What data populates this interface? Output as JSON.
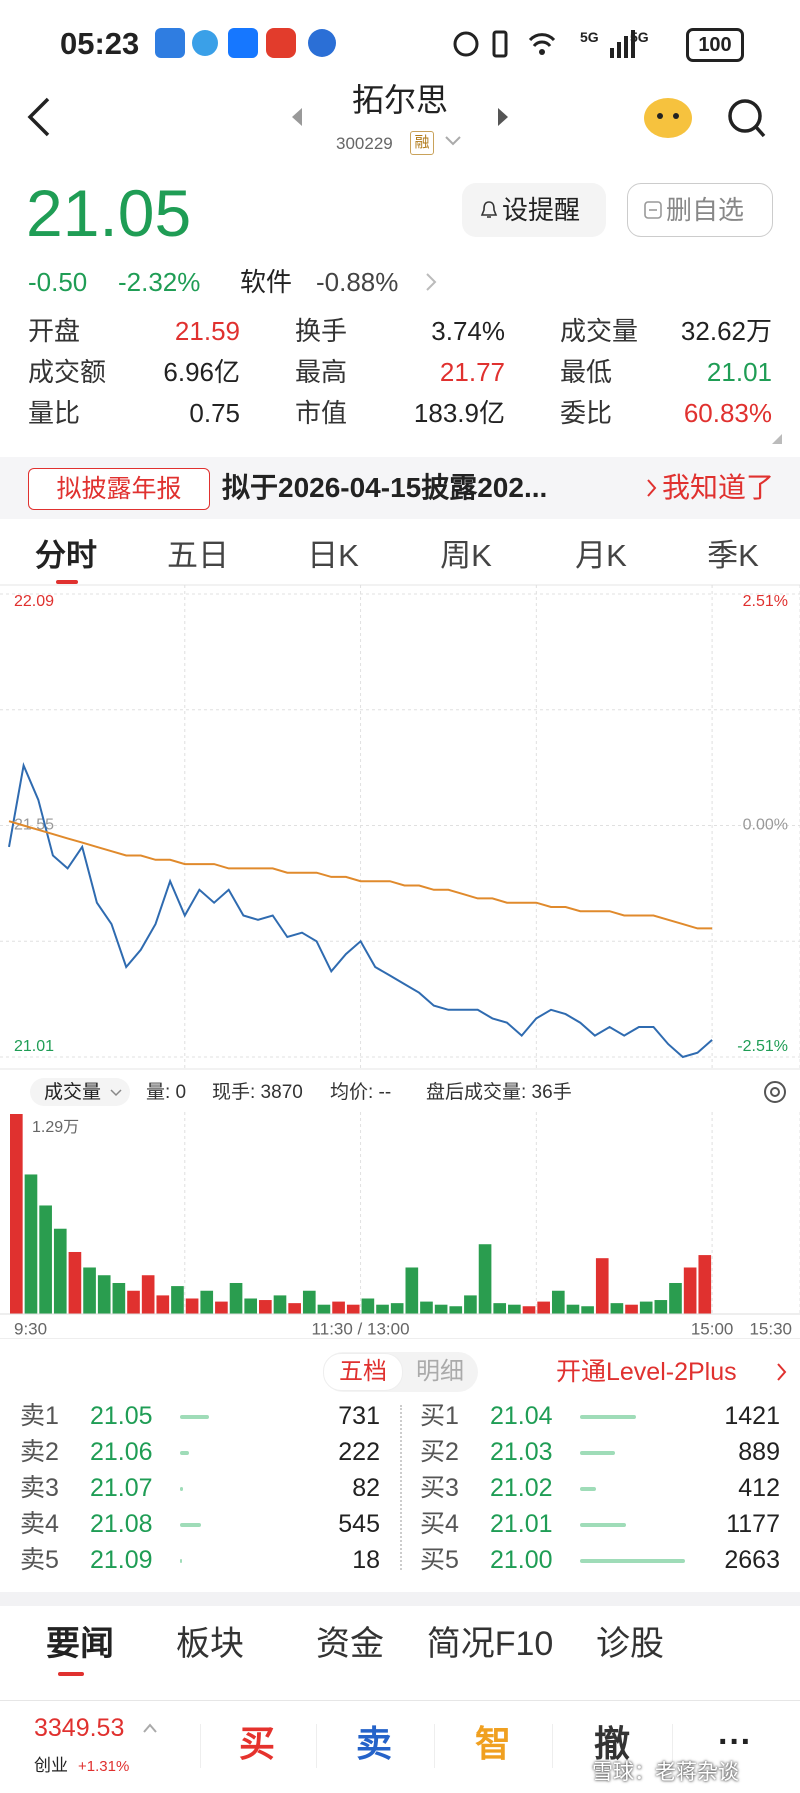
{
  "status_bar": {
    "time": "05:23",
    "network_1": "5G",
    "network_2": "5G",
    "battery": "100"
  },
  "header": {
    "title": "拓尔思",
    "code": "300229",
    "tag": "融"
  },
  "quote": {
    "price": "21.05",
    "change": "-0.50",
    "change_pct": "-2.32%",
    "sector": "软件",
    "sector_change": "-0.88%",
    "alert_button": "设提醒",
    "remove_button": "删自选"
  },
  "stats": [
    {
      "label": "开盘",
      "value": "21.59",
      "color": "#e0312f"
    },
    {
      "label": "换手",
      "value": "3.74%",
      "color": "#222222"
    },
    {
      "label": "成交量",
      "value": "32.62万",
      "color": "#222222"
    },
    {
      "label": "成交额",
      "value": "6.96亿",
      "color": "#222222"
    },
    {
      "label": "最高",
      "value": "21.77",
      "color": "#e0312f"
    },
    {
      "label": "最低",
      "value": "21.01",
      "color": "#1f9d55"
    },
    {
      "label": "量比",
      "value": "0.75",
      "color": "#222222"
    },
    {
      "label": "市值",
      "value": "183.9亿",
      "color": "#222222"
    },
    {
      "label": "委比",
      "value": "60.83%",
      "color": "#e0312f"
    }
  ],
  "notice": {
    "tag": "拟披露年报",
    "text": "拟于2026-04-15披露202...",
    "action": "我知道了"
  },
  "chart_tabs": [
    "分时",
    "五日",
    "日K",
    "周K",
    "月K",
    "季K"
  ],
  "chart_data": [
    {
      "type": "line",
      "x": [
        0,
        5,
        10,
        15,
        20,
        25,
        30,
        35,
        40,
        45,
        50,
        55,
        60,
        65,
        70,
        75,
        80,
        85,
        90,
        95,
        100,
        105,
        110,
        115,
        120,
        125,
        130,
        135,
        140,
        145,
        150,
        155,
        160,
        165,
        170,
        175,
        180,
        185,
        190,
        195,
        200,
        205,
        210,
        215,
        220,
        225,
        230,
        235,
        240
      ],
      "series": [
        {
          "color": "#2f6bb0",
          "values": [
            21.5,
            21.69,
            21.61,
            21.48,
            21.45,
            21.5,
            21.37,
            21.32,
            21.22,
            21.26,
            21.32,
            21.42,
            21.34,
            21.4,
            21.37,
            21.4,
            21.34,
            21.33,
            21.34,
            21.29,
            21.3,
            21.28,
            21.21,
            21.25,
            21.28,
            21.22,
            21.2,
            21.18,
            21.16,
            21.13,
            21.12,
            21.12,
            21.12,
            21.1,
            21.09,
            21.06,
            21.1,
            21.12,
            21.11,
            21.09,
            21.06,
            21.08,
            21.06,
            21.08,
            21.08,
            21.04,
            21.01,
            21.02,
            21.05
          ]
        },
        {
          "color": "#e08a2c",
          "values": [
            21.56,
            21.55,
            21.54,
            21.53,
            21.52,
            21.51,
            21.5,
            21.49,
            21.48,
            21.48,
            21.47,
            21.47,
            21.46,
            21.46,
            21.46,
            21.45,
            21.45,
            21.45,
            21.45,
            21.44,
            21.44,
            21.44,
            21.43,
            21.43,
            21.42,
            21.42,
            21.42,
            21.41,
            21.41,
            21.4,
            21.4,
            21.39,
            21.38,
            21.38,
            21.37,
            21.37,
            21.37,
            21.36,
            21.36,
            21.35,
            21.35,
            21.35,
            21.34,
            21.34,
            21.34,
            21.33,
            21.32,
            21.31,
            21.31
          ]
        }
      ],
      "xlim": [
        0,
        270
      ],
      "ylim": [
        21.01,
        22.09
      ],
      "yticks": [
        22.09,
        21.55,
        21.01
      ],
      "y2lim": [
        -2.51,
        2.51
      ],
      "y2ticks": [
        {
          "value": 2.51,
          "label": "2.51%"
        },
        {
          "value": 0,
          "label": "0.00%"
        },
        {
          "value": -2.51,
          "label": "-2.51%"
        }
      ],
      "grid": true
    },
    {
      "type": "bar",
      "x": [
        2.5,
        7.5,
        12.5,
        17.5,
        22.5,
        27.5,
        32.5,
        37.5,
        42.5,
        47.5,
        52.5,
        57.5,
        62.5,
        67.5,
        72.5,
        77.5,
        82.5,
        87.5,
        92.5,
        97.5,
        102.5,
        107.5,
        112.5,
        117.5,
        122.5,
        127.5,
        132.5,
        137.5,
        142.5,
        147.5,
        152.5,
        157.5,
        162.5,
        167.5,
        172.5,
        177.5,
        182.5,
        187.5,
        192.5,
        197.5,
        202.5,
        207.5,
        212.5,
        217.5,
        222.5,
        227.5,
        232.5,
        237.5
      ],
      "values": [
        12900,
        9000,
        7000,
        5500,
        4000,
        3000,
        2500,
        2000,
        1500,
        2500,
        1200,
        1800,
        1000,
        1500,
        800,
        2000,
        1000,
        900,
        1200,
        700,
        1500,
        600,
        800,
        600,
        1000,
        600,
        700,
        3000,
        800,
        600,
        500,
        1200,
        4500,
        700,
        600,
        500,
        800,
        1500,
        600,
        500,
        3600,
        700,
        600,
        800,
        900,
        2000,
        3000,
        3800
      ],
      "colors": [
        "#e0312f",
        "#2a9d4f",
        "#2a9d4f",
        "#2a9d4f",
        "#e0312f",
        "#2a9d4f",
        "#2a9d4f",
        "#2a9d4f",
        "#e0312f",
        "#e0312f",
        "#e0312f",
        "#2a9d4f",
        "#e0312f",
        "#2a9d4f",
        "#e0312f",
        "#2a9d4f",
        "#2a9d4f",
        "#e0312f",
        "#2a9d4f",
        "#e0312f",
        "#2a9d4f",
        "#2a9d4f",
        "#e0312f",
        "#e0312f",
        "#2a9d4f",
        "#2a9d4f",
        "#2a9d4f",
        "#2a9d4f",
        "#2a9d4f",
        "#2a9d4f",
        "#2a9d4f",
        "#2a9d4f",
        "#2a9d4f",
        "#2a9d4f",
        "#2a9d4f",
        "#e0312f",
        "#e0312f",
        "#2a9d4f",
        "#2a9d4f",
        "#2a9d4f",
        "#e0312f",
        "#2a9d4f",
        "#e0312f",
        "#2a9d4f",
        "#2a9d4f",
        "#2a9d4f",
        "#e0312f",
        "#e0312f"
      ],
      "xlim": [
        0,
        270
      ],
      "xticks": [
        {
          "value": 0,
          "label": "9:30"
        },
        {
          "value": 120,
          "label": "11:30 / 13:00"
        },
        {
          "value": 240,
          "label": "15:00"
        },
        {
          "value": 270,
          "label": "15:30"
        }
      ],
      "ylim": [
        0,
        12900
      ],
      "yticks": [
        {
          "value": 12900,
          "label": "1.29万"
        }
      ]
    }
  ],
  "volume_header": {
    "selector": "成交量",
    "items": [
      "量: 0",
      "现手: 3870",
      "均价: --",
      "盘后成交量: 36手"
    ]
  },
  "order_book": {
    "tabs": [
      "五档",
      "明细"
    ],
    "upgrade": "开通Level-2Plus",
    "asks": [
      {
        "label": "卖1",
        "price": "21.05",
        "volume": 731
      },
      {
        "label": "卖2",
        "price": "21.06",
        "volume": 222
      },
      {
        "label": "卖3",
        "price": "21.07",
        "volume": 82
      },
      {
        "label": "卖4",
        "price": "21.08",
        "volume": 545
      },
      {
        "label": "卖5",
        "price": "21.09",
        "volume": 18
      }
    ],
    "bids": [
      {
        "label": "买1",
        "price": "21.04",
        "volume": 1421
      },
      {
        "label": "买2",
        "price": "21.03",
        "volume": 889
      },
      {
        "label": "买3",
        "price": "21.02",
        "volume": 412
      },
      {
        "label": "买4",
        "price": "21.01",
        "volume": 1177
      },
      {
        "label": "买5",
        "price": "21.00",
        "volume": 2663
      }
    ]
  },
  "news_tabs": [
    "要闻",
    "板块",
    "资金",
    "简况F10",
    "诊股"
  ],
  "bottom_bar": {
    "index_value": "3349.53",
    "index_name": "创业",
    "index_change": "+1.31%",
    "actions": [
      "买",
      "卖",
      "智",
      "撤"
    ],
    "more": "···",
    "watermark": "雪球：老蒋杂谈"
  }
}
